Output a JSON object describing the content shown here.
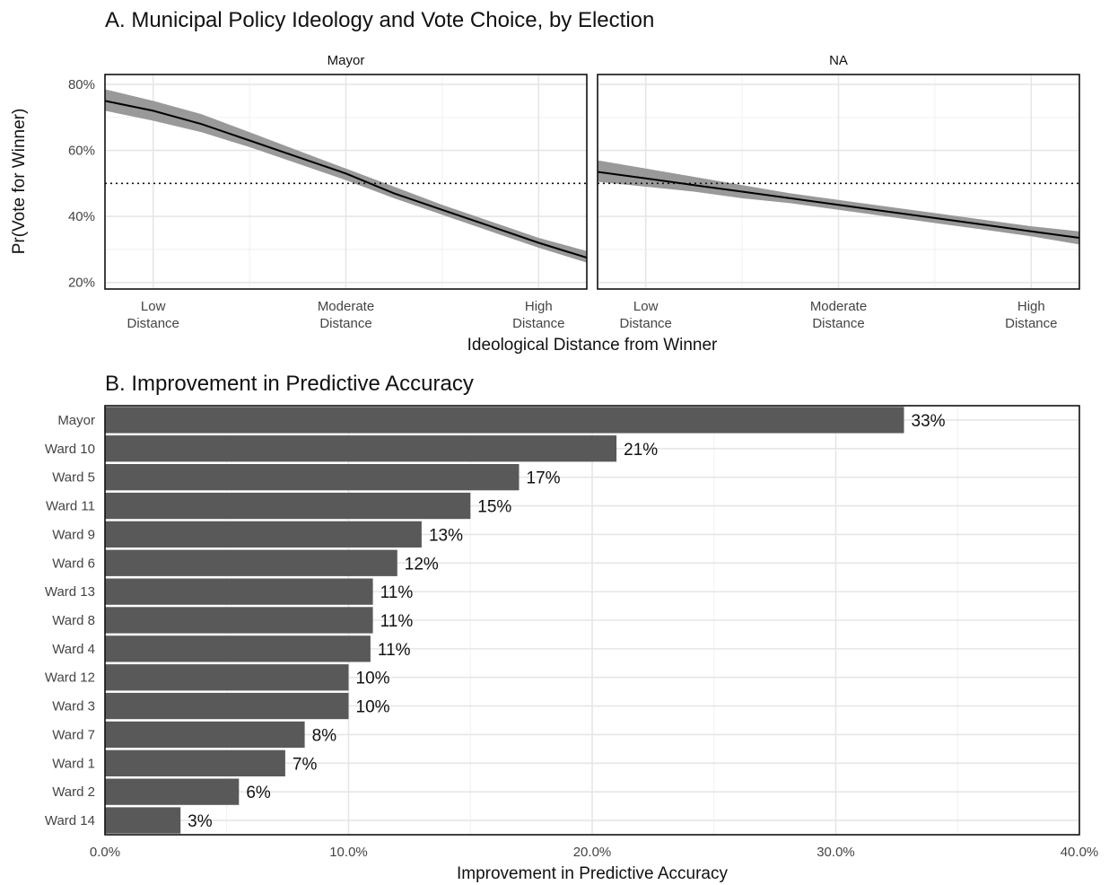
{
  "chart_data": [
    {
      "type": "line",
      "title": "A. Municipal Policy Ideology and Vote Choice, by Election",
      "xlabel": "Ideological Distance from Winner",
      "ylabel": "Pr(Vote for Winner)",
      "x_tick_labels": [
        {
          "value": 1,
          "lines": [
            "Low",
            "Distance"
          ]
        },
        {
          "value": 3,
          "lines": [
            "Moderate",
            "Distance"
          ]
        },
        {
          "value": 5,
          "lines": [
            "High",
            "Distance"
          ]
        }
      ],
      "xlim": [
        0.5,
        5.5
      ],
      "ylim": [
        0.18,
        0.83
      ],
      "y_ticks": [
        0.2,
        0.4,
        0.6,
        0.8
      ],
      "y_tick_labels": [
        "20%",
        "40%",
        "60%",
        "80%"
      ],
      "reference_line": 0.5,
      "panels": [
        {
          "name": "Mayor",
          "x": [
            0.5,
            1.0,
            1.5,
            2.0,
            2.5,
            3.0,
            3.5,
            4.0,
            4.5,
            5.0,
            5.5
          ],
          "y": [
            0.75,
            0.72,
            0.68,
            0.63,
            0.58,
            0.53,
            0.47,
            0.42,
            0.37,
            0.32,
            0.275
          ],
          "lower": [
            0.72,
            0.69,
            0.655,
            0.61,
            0.56,
            0.51,
            0.455,
            0.405,
            0.355,
            0.305,
            0.26
          ],
          "upper": [
            0.785,
            0.75,
            0.71,
            0.655,
            0.6,
            0.545,
            0.49,
            0.435,
            0.385,
            0.335,
            0.295
          ]
        },
        {
          "name": "NA",
          "x": [
            0.5,
            1.0,
            1.5,
            2.0,
            2.5,
            3.0,
            3.5,
            4.0,
            4.5,
            5.0,
            5.5
          ],
          "y": [
            0.535,
            0.515,
            0.495,
            0.475,
            0.455,
            0.435,
            0.415,
            0.395,
            0.375,
            0.355,
            0.335
          ],
          "lower": [
            0.505,
            0.49,
            0.475,
            0.455,
            0.44,
            0.42,
            0.4,
            0.38,
            0.36,
            0.34,
            0.315
          ],
          "upper": [
            0.57,
            0.545,
            0.52,
            0.495,
            0.47,
            0.45,
            0.43,
            0.41,
            0.39,
            0.37,
            0.355
          ]
        }
      ],
      "band_color": "#999999",
      "line_color": "#000000"
    },
    {
      "type": "bar",
      "orientation": "horizontal",
      "title": "B. Improvement in Predictive Accuracy",
      "xlabel": "Improvement in Predictive Accuracy",
      "ylabel": "",
      "categories": [
        "Mayor",
        "Ward 10",
        "Ward 5",
        "Ward 11",
        "Ward 9",
        "Ward 6",
        "Ward 13",
        "Ward 8",
        "Ward 4",
        "Ward 12",
        "Ward 3",
        "Ward 7",
        "Ward 1",
        "Ward 2",
        "Ward 14"
      ],
      "values": [
        0.328,
        0.21,
        0.17,
        0.15,
        0.13,
        0.12,
        0.11,
        0.11,
        0.109,
        0.1,
        0.1,
        0.082,
        0.074,
        0.055,
        0.031
      ],
      "value_labels": [
        "33%",
        "21%",
        "17%",
        "15%",
        "13%",
        "12%",
        "11%",
        "11%",
        "11%",
        "10%",
        "10%",
        "8%",
        "7%",
        "6%",
        "3%"
      ],
      "xlim": [
        0,
        0.4
      ],
      "x_ticks": [
        0,
        0.1,
        0.2,
        0.3,
        0.4
      ],
      "x_tick_labels": [
        "0.0%",
        "10.0%",
        "20.0%",
        "30.0%",
        "40.0%"
      ],
      "bar_color": "#595959"
    }
  ]
}
